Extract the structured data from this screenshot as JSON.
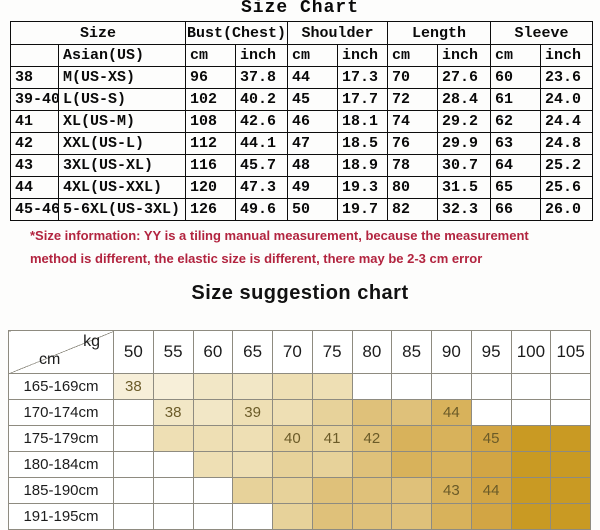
{
  "title": "Size Chart",
  "size_table": {
    "header_groups": [
      {
        "label": "Size",
        "span": 2
      },
      {
        "label": "Bust(Chest)",
        "span": 2
      },
      {
        "label": "Shoulder",
        "span": 2
      },
      {
        "label": "Length",
        "span": 2
      },
      {
        "label": "Sleeve",
        "span": 2
      }
    ],
    "subheader": [
      "",
      "Asian(US)",
      "cm",
      "inch",
      "cm",
      "inch",
      "cm",
      "inch",
      "cm",
      "inch"
    ],
    "rows": [
      [
        "38",
        "M(US-XS)",
        "96",
        "37.8",
        "44",
        "17.3",
        "70",
        "27.6",
        "60",
        "23.6"
      ],
      [
        "39-40",
        "L(US-S)",
        "102",
        "40.2",
        "45",
        "17.7",
        "72",
        "28.4",
        "61",
        "24.0"
      ],
      [
        "41",
        "XL(US-M)",
        "108",
        "42.6",
        "46",
        "18.1",
        "74",
        "29.2",
        "62",
        "24.4"
      ],
      [
        "42",
        "XXL(US-L)",
        "112",
        "44.1",
        "47",
        "18.5",
        "76",
        "29.9",
        "63",
        "24.8"
      ],
      [
        "43",
        "3XL(US-XL)",
        "116",
        "45.7",
        "48",
        "18.9",
        "78",
        "30.7",
        "64",
        "25.2"
      ],
      [
        "44",
        "4XL(US-XXL)",
        "120",
        "47.3",
        "49",
        "19.3",
        "80",
        "31.5",
        "65",
        "25.6"
      ],
      [
        "45-46",
        "5-6XL(US-3XL)",
        "126",
        "49.6",
        "50",
        "19.7",
        "82",
        "32.3",
        "66",
        "26.0"
      ]
    ]
  },
  "note": {
    "line1": "*Size information: YY is a tiling manual measurement, because the measurement",
    "line2": "method is different, the elastic size is different, there may be 2-3 cm error",
    "color": "#b2243f"
  },
  "suggestion": {
    "title": "Size suggestion chart",
    "kg_label": "kg",
    "cm_label": "cm",
    "weights": [
      "50",
      "55",
      "60",
      "65",
      "70",
      "75",
      "80",
      "85",
      "90",
      "95",
      "100",
      "105"
    ],
    "heights": [
      "165-169cm",
      "170-174cm",
      "175-179cm",
      "180-184cm",
      "185-190cm",
      "191-195cm"
    ],
    "palette": {
      "s0": "#ffffff",
      "s1": "#f7efd9",
      "s2": "#f2e7c6",
      "s3": "#eedfb4",
      "s4": "#e7d29a",
      "s5": "#dfc17a",
      "s6": "#d8b25b",
      "s7": "#d2a544",
      "s8": "#c99a23"
    },
    "cells": [
      [
        "s1",
        "s1",
        "s2",
        "s2",
        "s3",
        "s3",
        "s0",
        "s0",
        "s0",
        "s0",
        "s0",
        "s0"
      ],
      [
        "s0",
        "s2",
        "s2",
        "s3",
        "s3",
        "s4",
        "s5",
        "s5",
        "s6",
        "s0",
        "s0",
        "s0"
      ],
      [
        "s0",
        "s3",
        "s3",
        "s3",
        "s4",
        "s4",
        "s5",
        "s6",
        "s6",
        "s7",
        "s8",
        "s8"
      ],
      [
        "s0",
        "s0",
        "s3",
        "s3",
        "s4",
        "s4",
        "s5",
        "s6",
        "s6",
        "s7",
        "s8",
        "s8"
      ],
      [
        "s0",
        "s0",
        "s0",
        "s4",
        "s4",
        "s5",
        "s5",
        "s5",
        "s6",
        "s7",
        "s8",
        "s8"
      ],
      [
        "s0",
        "s0",
        "s0",
        "s0",
        "s4",
        "s5",
        "s5",
        "s5",
        "s6",
        "s7",
        "s8",
        "s8"
      ]
    ],
    "labels": [
      {
        "row": 0,
        "col": 0,
        "text": "38",
        "align": "right"
      },
      {
        "row": 1,
        "col": 1,
        "text": "38",
        "align": "right"
      },
      {
        "row": 1,
        "col": 3,
        "text": "39",
        "align": "left"
      },
      {
        "row": 1,
        "col": 8,
        "text": "44",
        "align": "center"
      },
      {
        "row": 2,
        "col": 4,
        "text": "40",
        "align": "center"
      },
      {
        "row": 2,
        "col": 5,
        "text": "41",
        "align": "right"
      },
      {
        "row": 2,
        "col": 6,
        "text": "42",
        "align": "right"
      },
      {
        "row": 2,
        "col": 9,
        "text": "45",
        "align": "center"
      },
      {
        "row": 4,
        "col": 8,
        "text": "43",
        "align": "left"
      },
      {
        "row": 4,
        "col": 9,
        "text": "44",
        "align": "center"
      }
    ]
  }
}
